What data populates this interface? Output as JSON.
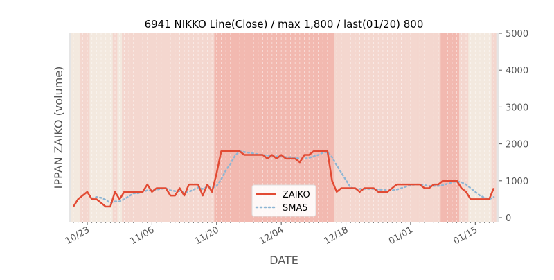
{
  "chart_data": {
    "type": "line",
    "title": "6941 NIKKO Line(Close) / max 1,800 / last(01/20) 800",
    "xlabel": "DATE",
    "ylabel": "IPPAN ZAIKO (volume)",
    "ylim": [
      0,
      5000
    ],
    "yticks": [
      "0",
      "1000",
      "2000",
      "3000",
      "4000",
      "5000"
    ],
    "start_date": "10/20",
    "xtick_labels": [
      "10/23",
      "11/06",
      "11/20",
      "12/04",
      "12/18",
      "01/01",
      "01/15"
    ],
    "xtick_day_offsets": [
      3,
      17,
      31,
      45,
      59,
      73,
      87
    ],
    "legend_position": "lower-center",
    "series": [
      {
        "name": "ZAIKO",
        "color": "#e24a33",
        "style": "solid",
        "values": [
          300,
          500,
          600,
          700,
          500,
          500,
          400,
          300,
          300,
          700,
          500,
          700,
          700,
          700,
          700,
          700,
          900,
          700,
          800,
          800,
          800,
          600,
          600,
          800,
          600,
          900,
          900,
          900,
          600,
          900,
          700,
          1200,
          1800,
          1800,
          1800,
          1800,
          1800,
          1700,
          1700,
          1700,
          1700,
          1700,
          1600,
          1700,
          1600,
          1700,
          1600,
          1600,
          1600,
          1500,
          1700,
          1700,
          1800,
          1800,
          1800,
          1800,
          1000,
          700,
          800,
          800,
          800,
          800,
          700,
          800,
          800,
          800,
          700,
          700,
          700,
          800,
          900,
          900,
          900,
          900,
          900,
          900,
          800,
          800,
          900,
          900,
          1000,
          1000,
          1000,
          1000,
          800,
          700,
          500,
          500,
          500,
          500,
          500,
          800
        ]
      },
      {
        "name": "SMA5",
        "color": "#8eb6d4",
        "style": "dotted",
        "window": 5
      }
    ],
    "colors": {
      "low": "#f3e9df",
      "mid": "#f4d7cf",
      "high": "#f2b9b0",
      "edge": "#e5e5e5"
    }
  }
}
